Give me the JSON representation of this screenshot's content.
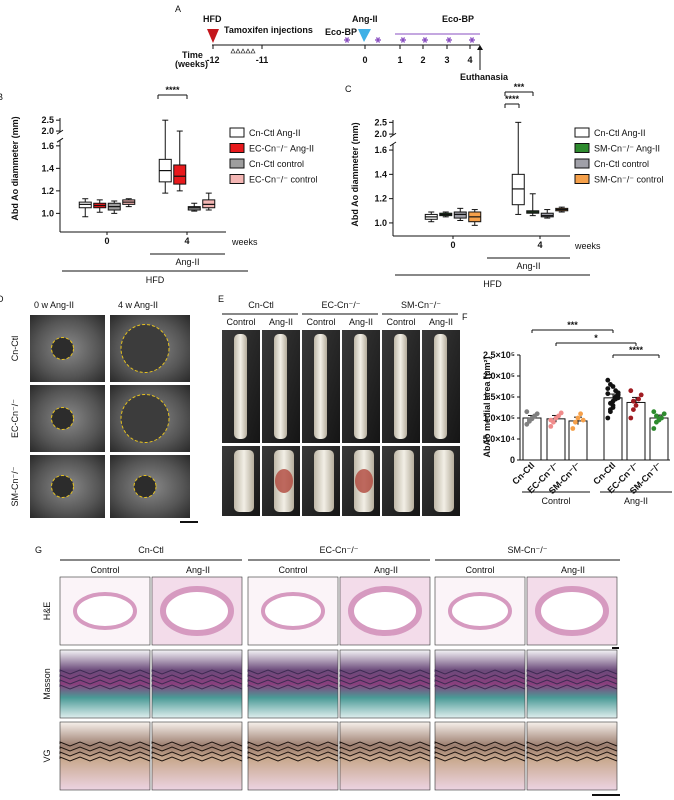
{
  "panel_labels": [
    "A",
    "B",
    "C",
    "D",
    "E",
    "F",
    "G"
  ],
  "timeline": {
    "hfd": "HFD",
    "tamoxifen": "Tamoxifen injections",
    "time_label": [
      "Time",
      "(weeks)"
    ],
    "ticks": [
      "-12",
      "-11",
      "0",
      "1",
      "2",
      "3",
      "4"
    ],
    "ang_ii": "Ang-II",
    "eco_bp": [
      "Eco-BP",
      "Eco-BP"
    ],
    "euthanasia": "Euthanasia"
  },
  "chart_data": [
    {
      "type": "box",
      "y_label": "Abd Ao diammeter (mm)",
      "categories": [
        "0",
        "4"
      ],
      "x_unit": "weeks",
      "treatment_label": "Ang-II",
      "diet_label": "HFD",
      "ylim": [
        0.95,
        2.6
      ],
      "ybreak": [
        1.65,
        1.95
      ],
      "yticks": [
        {
          "value": 1.0,
          "label": "1.0"
        },
        1.2,
        1.4,
        1.6,
        {
          "value": 2.0,
          "label": "2.0"
        },
        2.5
      ],
      "series": [
        {
          "name": "Cn-Ctl Ang-II",
          "color": "#ffffff",
          "values": [
            [
              0.97,
              1.05,
              1.08,
              1.1,
              1.13
            ],
            [
              1.18,
              1.28,
              1.38,
              1.48,
              2.5
            ]
          ]
        },
        {
          "name": "EC-Cn⁻/⁻ Ang-II",
          "color": "#e8191c",
          "values": [
            [
              1.01,
              1.05,
              1.07,
              1.09,
              1.12
            ],
            [
              1.2,
              1.26,
              1.33,
              1.43,
              2.0
            ]
          ]
        },
        {
          "name": "Cn-Ctl control",
          "color": "#9e9e9e",
          "values": [
            [
              1.0,
              1.03,
              1.06,
              1.09,
              1.11
            ],
            [
              1.02,
              1.03,
              1.05,
              1.06,
              1.09
            ]
          ]
        },
        {
          "name": "EC-Cn⁻/⁻ control",
          "color": "#f4b6b4",
          "values": [
            [
              1.06,
              1.08,
              1.1,
              1.12,
              1.13
            ],
            [
              1.03,
              1.05,
              1.08,
              1.12,
              1.18
            ]
          ]
        }
      ],
      "annotations": [
        "****"
      ]
    },
    {
      "type": "box",
      "y_label": "Abd Ao diammeter (mm)",
      "categories": [
        "0",
        "4"
      ],
      "x_unit": "weeks",
      "treatment_label": "Ang-II",
      "diet_label": "HFD",
      "ylim": [
        0.95,
        2.6
      ],
      "ybreak": [
        1.65,
        1.95
      ],
      "yticks": [
        {
          "value": 1.0,
          "label": "1.0"
        },
        1.2,
        1.4,
        1.6,
        {
          "value": 2.0,
          "label": "2.0"
        },
        2.5
      ],
      "series": [
        {
          "name": "Cn-Ctl Ang-II",
          "color": "#ffffff",
          "values": [
            [
              1.01,
              1.03,
              1.05,
              1.07,
              1.09
            ],
            [
              1.07,
              1.15,
              1.28,
              1.4,
              2.5
            ]
          ]
        },
        {
          "name": "SM-Cn⁻/⁻ Ang-II",
          "color": "#2e8b2e",
          "values": [
            [
              1.05,
              1.06,
              1.07,
              1.08,
              1.09
            ],
            [
              1.06,
              1.08,
              1.09,
              1.1,
              1.24
            ]
          ]
        },
        {
          "name": "Cn-Ctl control",
          "color": "#a0a0a8",
          "values": [
            [
              1.02,
              1.04,
              1.07,
              1.09,
              1.12
            ],
            [
              1.04,
              1.05,
              1.06,
              1.08,
              1.11
            ]
          ]
        },
        {
          "name": "SM-Cn⁻/⁻ control",
          "color": "#f5a04a",
          "values": [
            [
              0.98,
              1.01,
              1.05,
              1.09,
              1.11
            ],
            [
              1.09,
              1.1,
              1.11,
              1.12,
              1.13
            ]
          ]
        }
      ],
      "annotations": [
        "***",
        "****"
      ]
    },
    {
      "type": "bar",
      "y_label": "AbAo medial area (μm²)",
      "categories": [
        "Cn-Ctl",
        "EC-Cn⁻/⁻",
        "SM-Cn⁻/⁻",
        "Cn-Ctl",
        "EC-Cn⁻/⁻",
        "SM-Cn⁻/⁻"
      ],
      "groups": [
        "Control",
        "Ang-II"
      ],
      "ylim": [
        0,
        250000
      ],
      "yticks": [
        0,
        {
          "value": 50000,
          "label": "5.0×10⁴"
        },
        {
          "value": 100000,
          "label": "1.0×10⁵"
        },
        {
          "value": 150000,
          "label": "1.5×10⁵"
        },
        {
          "value": 200000,
          "label": "2.0×10⁵"
        },
        {
          "value": 250000,
          "label": "2.5×10⁵"
        }
      ],
      "color": "#ffffff",
      "values": [
        100000,
        98000,
        93000,
        148000,
        137000,
        100000
      ],
      "errors": [
        6000,
        8000,
        9000,
        9000,
        12000,
        7000
      ],
      "point_colors": [
        "#808080",
        "#f08c8c",
        "#f5a04a",
        "#111111",
        "#a01c22",
        "#2e8b2e"
      ],
      "points": [
        [
          85000,
          95000,
          100000,
          105000,
          110000,
          115000,
          92000,
          98000
        ],
        [
          80000,
          90000,
          100000,
          105000,
          112000,
          95000
        ],
        [
          75000,
          90000,
          100000,
          110000,
          95000
        ],
        [
          100000,
          120000,
          140000,
          150000,
          160000,
          170000,
          180000,
          130000,
          145000,
          155000,
          190000,
          135000,
          125000,
          165000,
          148000,
          158000,
          115000,
          175000
        ],
        [
          100000,
          120000,
          130000,
          145000,
          155000,
          165000,
          140000
        ],
        [
          75000,
          90000,
          95000,
          100000,
          110000,
          115000,
          105000,
          98000
        ]
      ],
      "annotations": [
        "***",
        "*",
        "****"
      ]
    }
  ],
  "ultrasound": {
    "columns": [
      "0 w Ang-II",
      "4 w Ang-II"
    ],
    "rows": [
      "Cn-Ctl",
      "EC-Cn⁻/⁻",
      "SM-Cn⁻/⁻"
    ]
  },
  "aorta_photos": {
    "groups": [
      "Cn-Ctl",
      "EC-Cn⁻/⁻",
      "SM-Cn⁻/⁻"
    ],
    "conditions": [
      "Control",
      "Ang-II"
    ]
  },
  "histology": {
    "groups": [
      "Cn-Ctl",
      "EC-Cn⁻/⁻",
      "SM-Cn⁻/⁻"
    ],
    "conditions": [
      "Control",
      "Ang-II"
    ],
    "stains": [
      "H&E",
      "Masson",
      "VG"
    ]
  }
}
